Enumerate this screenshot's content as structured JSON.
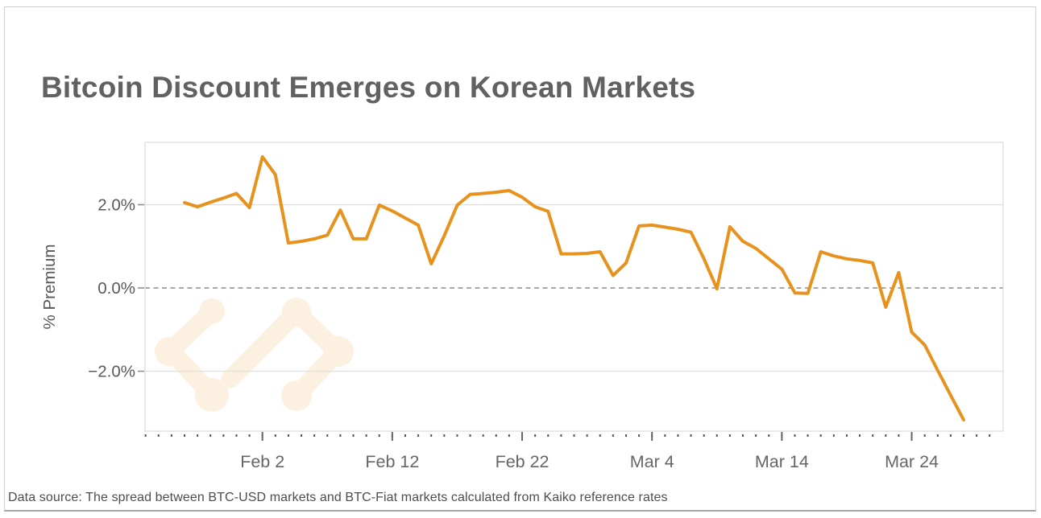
{
  "card": {
    "title": "Bitcoin Discount Emerges on Korean Markets",
    "caption": "Data source: The spread between BTC-USD markets and BTC-Fiat markets calculated from Kaiko reference rates"
  },
  "colors": {
    "accent_line": "#E8921E",
    "watermark": "#FCF1E0",
    "title_text": "#616161",
    "axis_text": "#595959",
    "tick_label_x": "#666666",
    "grid": "#E2E2E2",
    "zero_line": "#9C9C9C",
    "plot_border": "#DADADA",
    "card_border": "#CFCFCF",
    "bottom_rule": "#A6A6A6",
    "tick_mark": "#555555"
  },
  "chart_data": {
    "type": "line",
    "title": "Bitcoin Discount Emerges on Korean Markets",
    "xlabel": "",
    "ylabel": "% Premium",
    "units": "percent",
    "legend": "none",
    "grid": "horizontal-y",
    "zero_line": "dashed",
    "ylim": [
      -3.5,
      3.5
    ],
    "line_color": "#E8921E",
    "y_ticks": [
      {
        "value": 2.0,
        "label": "2.0%"
      },
      {
        "value": 0.0,
        "label": "0.0%"
      },
      {
        "value": -2.0,
        "label": "−2.0%"
      }
    ],
    "x_ticks": [
      "Feb 2",
      "Feb 12",
      "Feb 22",
      "Mar 4",
      "Mar 14",
      "Mar 24"
    ],
    "x": [
      "Jan 27",
      "Jan 28",
      "Jan 29",
      "Jan 30",
      "Jan 31",
      "Feb 1",
      "Feb 2",
      "Feb 3",
      "Feb 4",
      "Feb 5",
      "Feb 6",
      "Feb 7",
      "Feb 8",
      "Feb 9",
      "Feb 10",
      "Feb 11",
      "Feb 12",
      "Feb 13",
      "Feb 14",
      "Feb 15",
      "Feb 16",
      "Feb 17",
      "Feb 18",
      "Feb 19",
      "Feb 20",
      "Feb 21",
      "Feb 22",
      "Feb 23",
      "Feb 24",
      "Feb 25",
      "Feb 26",
      "Feb 27",
      "Feb 28",
      "Mar 1",
      "Mar 2",
      "Mar 3",
      "Mar 4",
      "Mar 5",
      "Mar 6",
      "Mar 7",
      "Mar 8",
      "Mar 9",
      "Mar 10",
      "Mar 11",
      "Mar 12",
      "Mar 13",
      "Mar 14",
      "Mar 15",
      "Mar 16",
      "Mar 17",
      "Mar 18",
      "Mar 19",
      "Mar 20",
      "Mar 21",
      "Mar 22",
      "Mar 23",
      "Mar 24",
      "Mar 25",
      "Mar 26",
      "Mar 27",
      "Mar 28"
    ],
    "y": [
      2.05,
      1.95,
      2.06,
      2.16,
      2.27,
      1.93,
      3.15,
      2.72,
      1.08,
      1.12,
      1.18,
      1.27,
      1.87,
      1.18,
      1.18,
      1.99,
      1.85,
      1.68,
      1.51,
      0.58,
      1.25,
      1.99,
      2.25,
      2.27,
      2.3,
      2.34,
      2.18,
      1.95,
      1.84,
      0.82,
      0.82,
      0.83,
      0.87,
      0.3,
      0.6,
      1.49,
      1.51,
      1.46,
      1.41,
      1.34,
      0.7,
      -0.02,
      1.47,
      1.12,
      0.95,
      0.7,
      0.45,
      -0.12,
      -0.13,
      0.87,
      0.77,
      0.7,
      0.66,
      0.6,
      -0.46,
      0.37,
      -1.06,
      -1.37,
      -1.98,
      -2.58,
      -3.17
    ]
  }
}
